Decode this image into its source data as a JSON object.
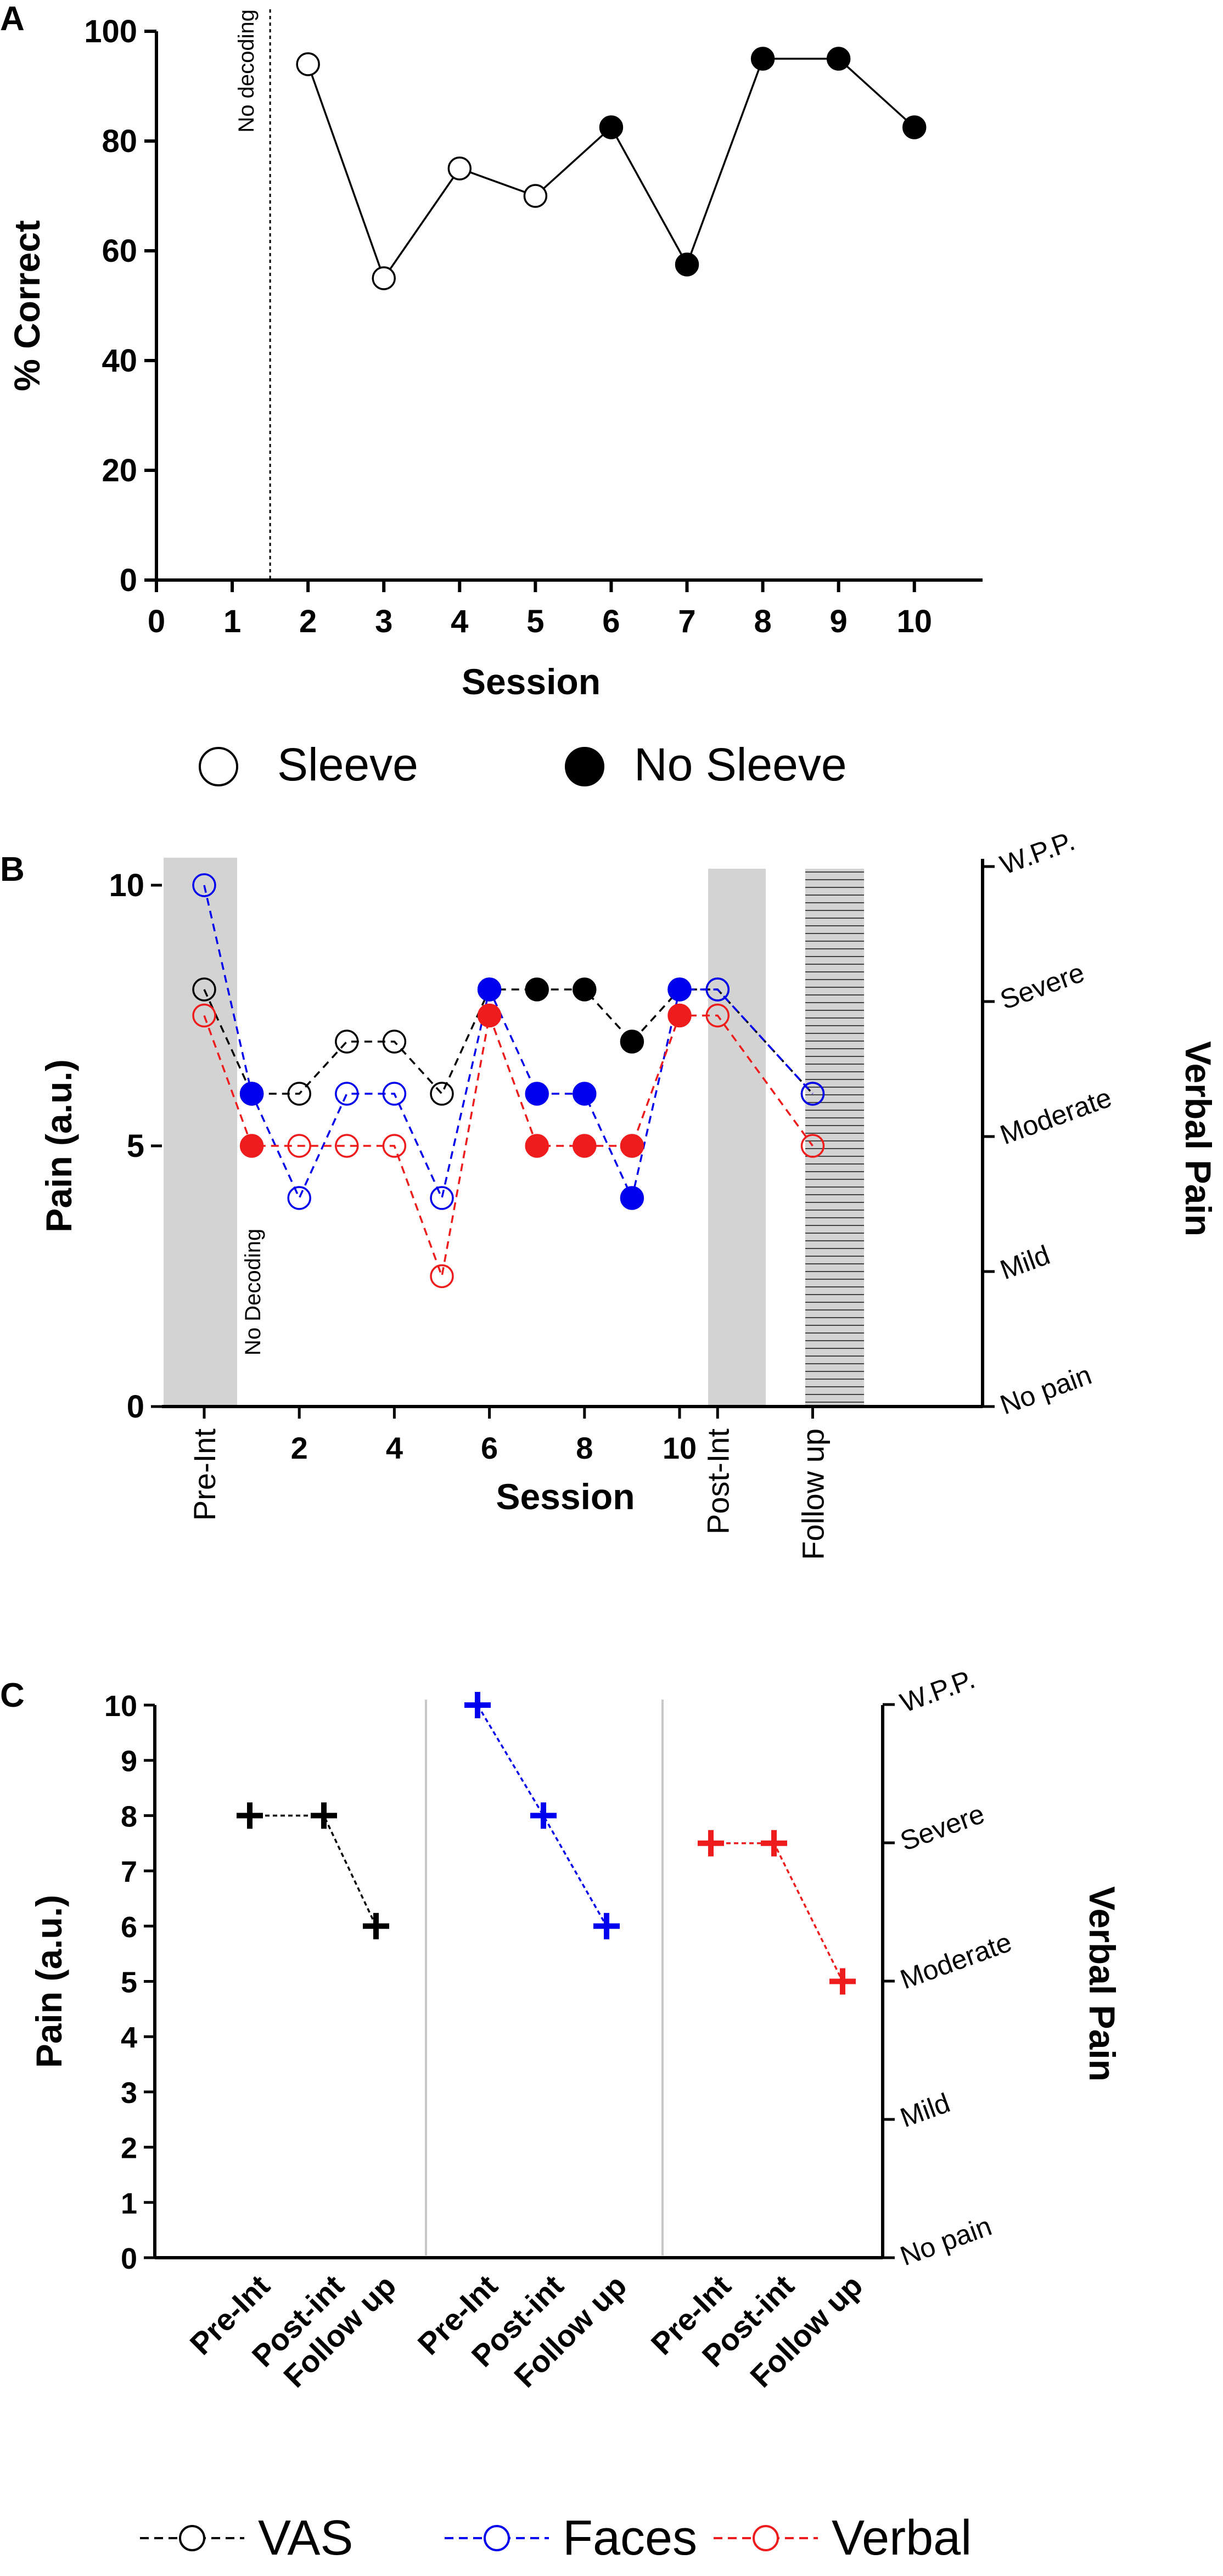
{
  "colors": {
    "vas": "#000000",
    "faces": "#0000ee",
    "verbal": "#ee1c1c",
    "shade": "#d3d3d3",
    "divider": "#c8c8c8",
    "hatch": "#444444"
  },
  "chart_data": [
    {
      "panel": "A",
      "type": "scatter",
      "xlabel": "Session",
      "ylabel": "% Correct",
      "xlim": [
        0,
        10.9
      ],
      "ylim": [
        0,
        100
      ],
      "xticks": [
        "0",
        "1",
        "2",
        "3",
        "4",
        "5",
        "6",
        "7",
        "8",
        "9",
        "10"
      ],
      "yticks": [
        "0",
        "20",
        "40",
        "60",
        "80",
        "100"
      ],
      "annotation": "No decoding",
      "annotation_x": 1.5,
      "series": [
        {
          "name": "Sleeve / No Sleeve",
          "x": [
            2,
            3,
            4,
            5,
            6,
            7,
            8,
            9,
            10
          ],
          "y": [
            94,
            55,
            75,
            70,
            82.5,
            57.5,
            95,
            95,
            82.5
          ],
          "filled": [
            false,
            false,
            false,
            false,
            true,
            true,
            true,
            true,
            true
          ]
        }
      ],
      "legend": [
        {
          "label": "Sleeve",
          "filled": false
        },
        {
          "label": "No Sleeve",
          "filled": true
        }
      ]
    },
    {
      "panel": "B",
      "type": "line",
      "xlabel": "Session",
      "ylabel": "Pain (a.u.)",
      "ylabel_right": "Verbal Pain",
      "ylim": [
        0,
        10
      ],
      "yticks": [
        "0",
        "5",
        "10"
      ],
      "xticks": [
        {
          "pos": 0,
          "label": "Pre-Int",
          "rot": true
        },
        {
          "pos": 2,
          "label": "2"
        },
        {
          "pos": 4,
          "label": "4"
        },
        {
          "pos": 6,
          "label": "6"
        },
        {
          "pos": 8,
          "label": "8"
        },
        {
          "pos": 10,
          "label": "10"
        },
        {
          "pos": 10.8,
          "label": "Post-Int",
          "rot": true
        },
        {
          "pos": 12.8,
          "label": "Follow up",
          "rot": true
        }
      ],
      "right_ticks": [
        "No pain",
        "Mild",
        "Moderate",
        "Severe",
        "W.P.P."
      ],
      "annotation": "No Decoding",
      "series": [
        {
          "name": "VAS",
          "x": [
            0,
            1,
            2,
            3,
            4,
            5,
            6,
            7,
            8,
            9,
            10,
            10.8,
            12.8
          ],
          "y": [
            8,
            6,
            6,
            7,
            7,
            6,
            8,
            8,
            8,
            7,
            8,
            8,
            6
          ],
          "filled": [
            false,
            true,
            false,
            false,
            false,
            false,
            true,
            true,
            true,
            true,
            true,
            false,
            false
          ]
        },
        {
          "name": "Faces",
          "x": [
            0,
            1,
            2,
            3,
            4,
            5,
            6,
            7,
            8,
            9,
            10,
            10.8,
            12.8
          ],
          "y": [
            10,
            6,
            4,
            6,
            6,
            4,
            8,
            6,
            6,
            4,
            8,
            8,
            6
          ],
          "filled": [
            false,
            true,
            false,
            false,
            false,
            false,
            true,
            true,
            true,
            true,
            true,
            false,
            false
          ]
        },
        {
          "name": "Verbal",
          "x": [
            0,
            1,
            2,
            3,
            4,
            5,
            6,
            7,
            8,
            9,
            10,
            10.8,
            12.8
          ],
          "y": [
            7.5,
            5,
            5,
            5,
            5,
            2.5,
            7.5,
            5,
            5,
            5,
            7.5,
            7.5,
            5
          ],
          "filled": [
            false,
            true,
            false,
            false,
            false,
            false,
            true,
            true,
            true,
            true,
            true,
            false,
            false
          ]
        }
      ]
    },
    {
      "panel": "C",
      "type": "line",
      "ylabel": "Pain (a.u.)",
      "ylabel_right": "Verbal Pain",
      "ylim": [
        0,
        10
      ],
      "yticks": [
        "0",
        "1",
        "2",
        "3",
        "4",
        "5",
        "6",
        "7",
        "8",
        "9",
        "10"
      ],
      "right_ticks": [
        "No pain",
        "Mild",
        "Moderate",
        "Severe",
        "W.P.P."
      ],
      "categories": [
        "Pre-Int",
        "Post-int",
        "Follow up"
      ],
      "series": [
        {
          "name": "VAS",
          "values": [
            8,
            8,
            6
          ]
        },
        {
          "name": "Faces",
          "values": [
            10,
            8,
            6
          ]
        },
        {
          "name": "Verbal",
          "values": [
            7.5,
            7.5,
            5
          ]
        }
      ]
    }
  ],
  "legend_bottom": [
    "VAS",
    "Faces",
    "Verbal"
  ]
}
